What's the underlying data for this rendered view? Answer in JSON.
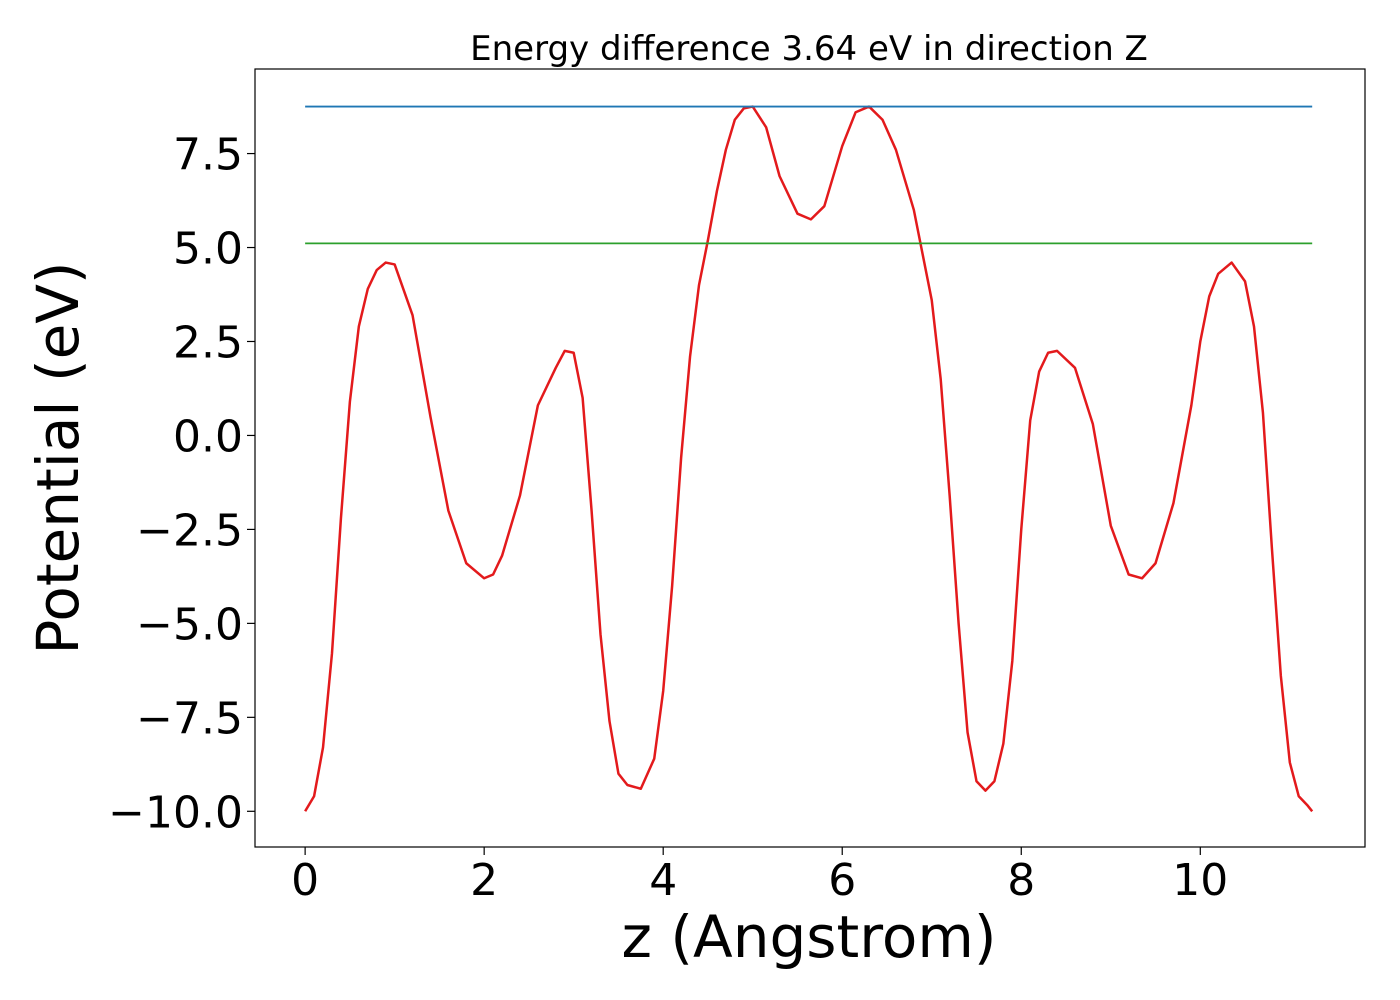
{
  "chart_data": {
    "type": "line",
    "title": "Energy difference 3.64 eV in direction Z",
    "xlabel": "z (Angstrom)",
    "ylabel": "Potential (eV)",
    "xlim": [
      -0.56,
      11.84
    ],
    "ylim": [
      -10.95,
      9.75
    ],
    "x_ticks": [
      0,
      2,
      4,
      6,
      8,
      10
    ],
    "x_tick_labels": [
      "0",
      "2",
      "4",
      "6",
      "8",
      "10"
    ],
    "y_ticks": [
      -10.0,
      -7.5,
      -5.0,
      -2.5,
      0.0,
      2.5,
      5.0,
      7.5
    ],
    "y_tick_labels": [
      "−10.0",
      "−7.5",
      "−5.0",
      "−2.5",
      "0.0",
      "2.5",
      "5.0",
      "7.5"
    ],
    "grid": false,
    "series": [
      {
        "role": "potential",
        "color": "#e31a1c",
        "x": [
          0.0,
          0.1,
          0.2,
          0.3,
          0.4,
          0.5,
          0.6,
          0.7,
          0.8,
          0.9,
          1.0,
          1.2,
          1.4,
          1.6,
          1.8,
          2.0,
          2.1,
          2.2,
          2.4,
          2.5,
          2.6,
          2.8,
          2.9,
          3.0,
          3.1,
          3.2,
          3.3,
          3.4,
          3.5,
          3.6,
          3.75,
          3.9,
          4.0,
          4.1,
          4.2,
          4.3,
          4.4,
          4.5,
          4.6,
          4.7,
          4.8,
          4.9,
          5.0,
          5.15,
          5.3,
          5.5,
          5.65,
          5.8,
          6.0,
          6.15,
          6.3,
          6.45,
          6.6,
          6.8,
          7.0,
          7.1,
          7.2,
          7.3,
          7.4,
          7.5,
          7.6,
          7.7,
          7.8,
          7.9,
          8.0,
          8.1,
          8.2,
          8.3,
          8.4,
          8.6,
          8.8,
          9.0,
          9.2,
          9.35,
          9.5,
          9.7,
          9.9,
          10.0,
          10.1,
          10.2,
          10.35,
          10.5,
          10.6,
          10.7,
          10.8,
          10.9,
          11.0,
          11.1,
          11.2,
          11.25
        ],
        "y": [
          -10.0,
          -9.6,
          -8.3,
          -5.8,
          -2.2,
          0.9,
          2.9,
          3.9,
          4.4,
          4.6,
          4.55,
          3.2,
          0.5,
          -2.0,
          -3.4,
          -3.8,
          -3.7,
          -3.2,
          -1.6,
          -0.4,
          0.8,
          1.8,
          2.25,
          2.2,
          1.0,
          -2.0,
          -5.3,
          -7.6,
          -9.0,
          -9.3,
          -9.4,
          -8.6,
          -6.8,
          -4.0,
          -0.6,
          2.1,
          4.0,
          5.2,
          6.5,
          7.6,
          8.4,
          8.7,
          8.75,
          8.2,
          6.9,
          5.9,
          5.75,
          6.1,
          7.7,
          8.6,
          8.75,
          8.4,
          7.6,
          6.0,
          3.6,
          1.5,
          -1.6,
          -5.0,
          -7.9,
          -9.2,
          -9.45,
          -9.2,
          -8.2,
          -6.0,
          -2.5,
          0.4,
          1.7,
          2.2,
          2.25,
          1.8,
          0.3,
          -2.4,
          -3.7,
          -3.8,
          -3.4,
          -1.8,
          0.8,
          2.5,
          3.7,
          4.3,
          4.6,
          4.1,
          2.9,
          0.6,
          -3.0,
          -6.4,
          -8.7,
          -9.6,
          -9.85,
          -10.0
        ]
      },
      {
        "role": "upper-level",
        "color": "#1f77b4",
        "x": [
          0.0,
          11.25
        ],
        "y": [
          8.75,
          8.75
        ]
      },
      {
        "role": "lower-level",
        "color": "#2ca02c",
        "x": [
          0.0,
          11.25
        ],
        "y": [
          5.11,
          5.11
        ]
      }
    ]
  }
}
